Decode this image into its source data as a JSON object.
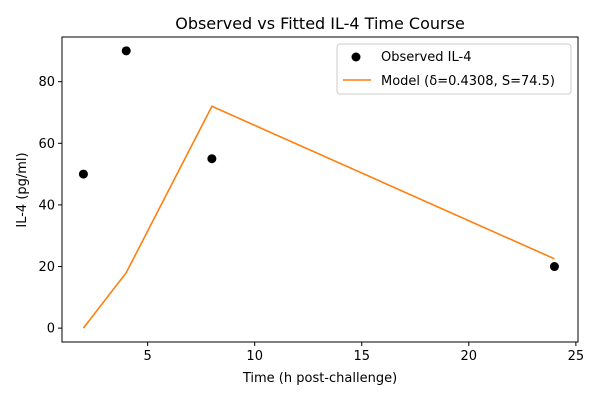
{
  "chart_data": {
    "type": "scatter",
    "title": "Observed vs Fitted IL-4 Time Course",
    "xlabel": "Time (h post-challenge)",
    "ylabel": "IL-4 (pg/ml)",
    "xlim": [
      1.0,
      25.1
    ],
    "ylim": [
      -4.5,
      94.5
    ],
    "xticks": [
      5,
      10,
      15,
      20,
      25
    ],
    "yticks": [
      0,
      20,
      40,
      60,
      80
    ],
    "xtick_labels": [
      "5",
      "10",
      "15",
      "20",
      "25"
    ],
    "ytick_labels": [
      "0",
      "20",
      "40",
      "60",
      "80"
    ],
    "grid": false,
    "legend_position": "upper-right",
    "series": [
      {
        "name": "Observed IL-4",
        "kind": "scatter",
        "color": "#000000",
        "x": [
          2,
          4,
          8,
          24
        ],
        "y": [
          50,
          90,
          55,
          20
        ]
      },
      {
        "name": "Model (δ=0.4308, S=74.5)",
        "kind": "line",
        "color": "#ff7f0e",
        "x": [
          2,
          4,
          8,
          24
        ],
        "y": [
          0,
          18,
          72,
          22.5
        ]
      }
    ]
  }
}
